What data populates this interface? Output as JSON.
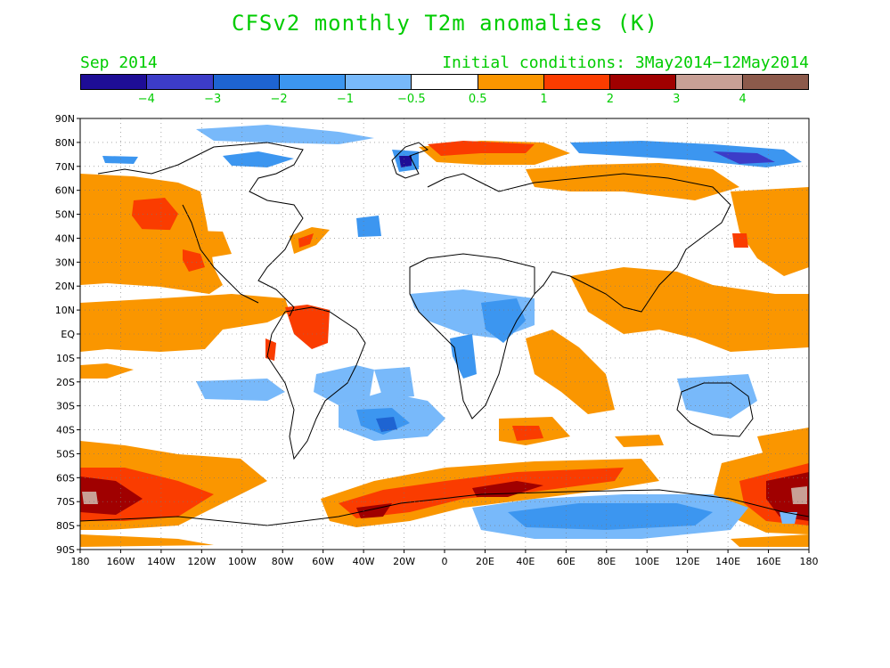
{
  "title": "CFSv2 monthly T2m anomalies (K)",
  "month_label": "Sep 2014",
  "init_label": "Initial conditions: 3May2014−12May2014",
  "colorbar": {
    "colors": [
      "#1e0d96",
      "#3c3cc8",
      "#1e64d2",
      "#3c96f0",
      "#78b9fa",
      "#ffffff",
      "#fa9600",
      "#fa3c00",
      "#a00000",
      "#c8a096",
      "#8c5a4b"
    ],
    "labels": [
      "−4",
      "−3",
      "−2",
      "−1",
      "−0.5",
      "0.5",
      "1",
      "2",
      "3",
      "4"
    ]
  },
  "lat_labels": [
    "90N",
    "80N",
    "70N",
    "60N",
    "50N",
    "40N",
    "30N",
    "20N",
    "10N",
    "EQ",
    "10S",
    "20S",
    "30S",
    "40S",
    "50S",
    "60S",
    "70S",
    "80S",
    "90S"
  ],
  "lon_labels": [
    "180",
    "160W",
    "140W",
    "120W",
    "100W",
    "80W",
    "60W",
    "40W",
    "20W",
    "0",
    "20E",
    "40E",
    "60E",
    "80E",
    "100E",
    "120E",
    "140E",
    "160E",
    "180"
  ],
  "grid_lines": "dotted",
  "anomaly_colors": {
    "warm_05_1": "#fa9600",
    "warm_1_2": "#fa3c00",
    "warm_2_3": "#a00000",
    "warm_3_4": "#c8a096",
    "cool_05_1": "#78b9fa",
    "cool_1_2": "#3c96f0",
    "cool_2_3": "#1e64d2",
    "cool_3_4": "#3c3cc8",
    "cool_4": "#1e0d96"
  }
}
